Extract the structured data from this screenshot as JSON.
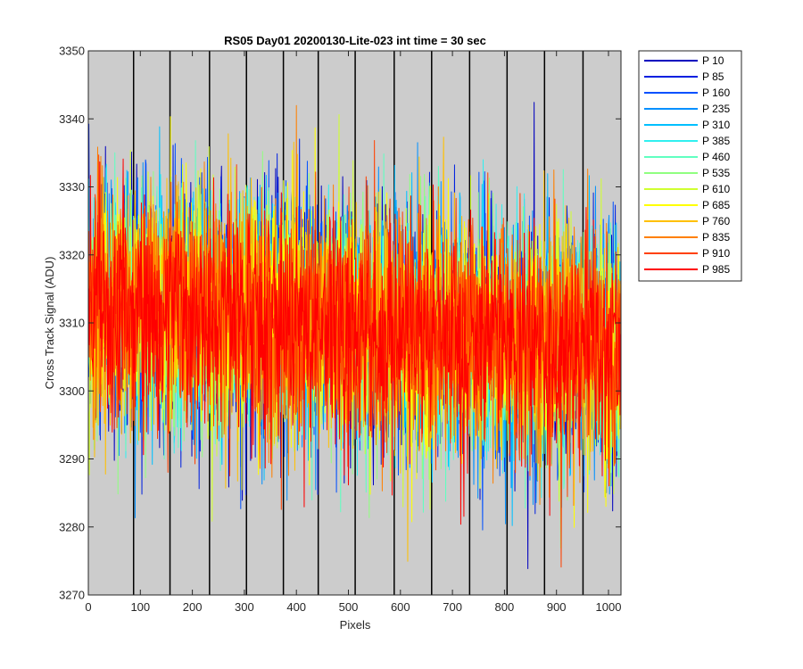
{
  "chart_data": {
    "type": "line",
    "title": "RS05 Day01 20200130-Lite-023 int time = 30 sec",
    "xlabel": "Pixels",
    "ylabel": "Cross Track Signal (ADU)",
    "xlim": [
      0,
      1024
    ],
    "ylim": [
      3270,
      3350
    ],
    "xticks": [
      0,
      100,
      200,
      300,
      400,
      500,
      600,
      700,
      800,
      900,
      1000
    ],
    "yticks": [
      3270,
      3280,
      3290,
      3300,
      3310,
      3320,
      3330,
      3340,
      3350
    ],
    "x_tick_labels": [
      "0",
      "100",
      "200",
      "300",
      "400",
      "500",
      "600",
      "700",
      "800",
      "900",
      "1000"
    ],
    "y_tick_labels": [
      "3270",
      "3280",
      "3290",
      "3300",
      "3310",
      "3320",
      "3330",
      "3340",
      "3350"
    ],
    "background_color": "#cccccc",
    "vertical_lines_x": [
      87,
      157,
      233,
      304,
      375,
      442,
      513,
      588,
      660,
      733,
      805,
      877,
      951
    ],
    "vertical_line_color": "#000000",
    "legend_position": "outside-top-right",
    "noise_mean_start": 3313,
    "noise_mean_end": 3306,
    "series": [
      {
        "name": "P 10",
        "color": "#0000bf"
      },
      {
        "name": "P 85",
        "color": "#0020e0"
      },
      {
        "name": "P 160",
        "color": "#0050ff"
      },
      {
        "name": "P 235",
        "color": "#0090ff"
      },
      {
        "name": "P 310",
        "color": "#00c0ff"
      },
      {
        "name": "P 385",
        "color": "#30f0f0"
      },
      {
        "name": "P 460",
        "color": "#60ffc0"
      },
      {
        "name": "P 535",
        "color": "#90ff80"
      },
      {
        "name": "P 610",
        "color": "#d0ff30"
      },
      {
        "name": "P 685",
        "color": "#ffff00"
      },
      {
        "name": "P 760",
        "color": "#ffc000"
      },
      {
        "name": "P 835",
        "color": "#ff8000"
      },
      {
        "name": "P 910",
        "color": "#ff4000"
      },
      {
        "name": "P 985",
        "color": "#ff0000"
      }
    ]
  }
}
